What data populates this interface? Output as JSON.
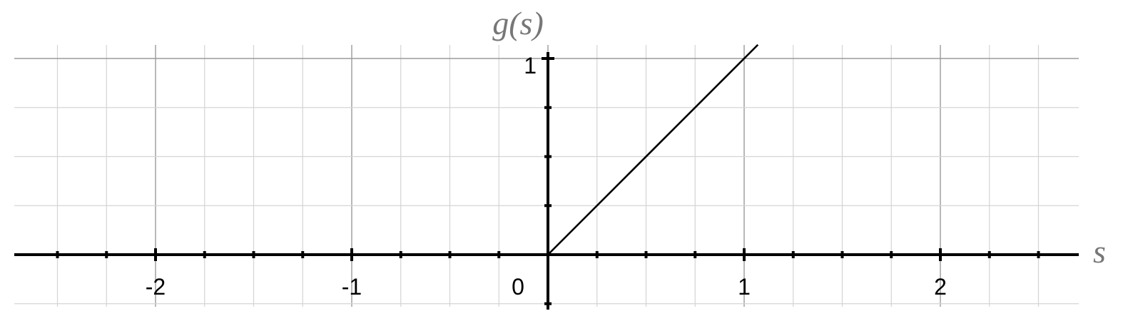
{
  "chart_data": {
    "type": "line",
    "title": "",
    "xlabel": "s",
    "ylabel": "g(s)",
    "xlim": [
      -2.7,
      2.7
    ],
    "ylim": [
      -0.27,
      1.1
    ],
    "grid": true,
    "x_major_ticks": [
      -2,
      -1,
      0,
      1,
      2
    ],
    "x_minor_step": 0.25,
    "y_major_ticks": [
      1
    ],
    "y_minor_step": 0.25,
    "tick_labels": {
      "x": [
        "-2",
        "-1",
        "0",
        "1",
        "2"
      ],
      "y": [
        "1"
      ]
    },
    "series": [
      {
        "x": [
          0,
          1.07
        ],
        "y": [
          0,
          1.07
        ]
      }
    ]
  }
}
